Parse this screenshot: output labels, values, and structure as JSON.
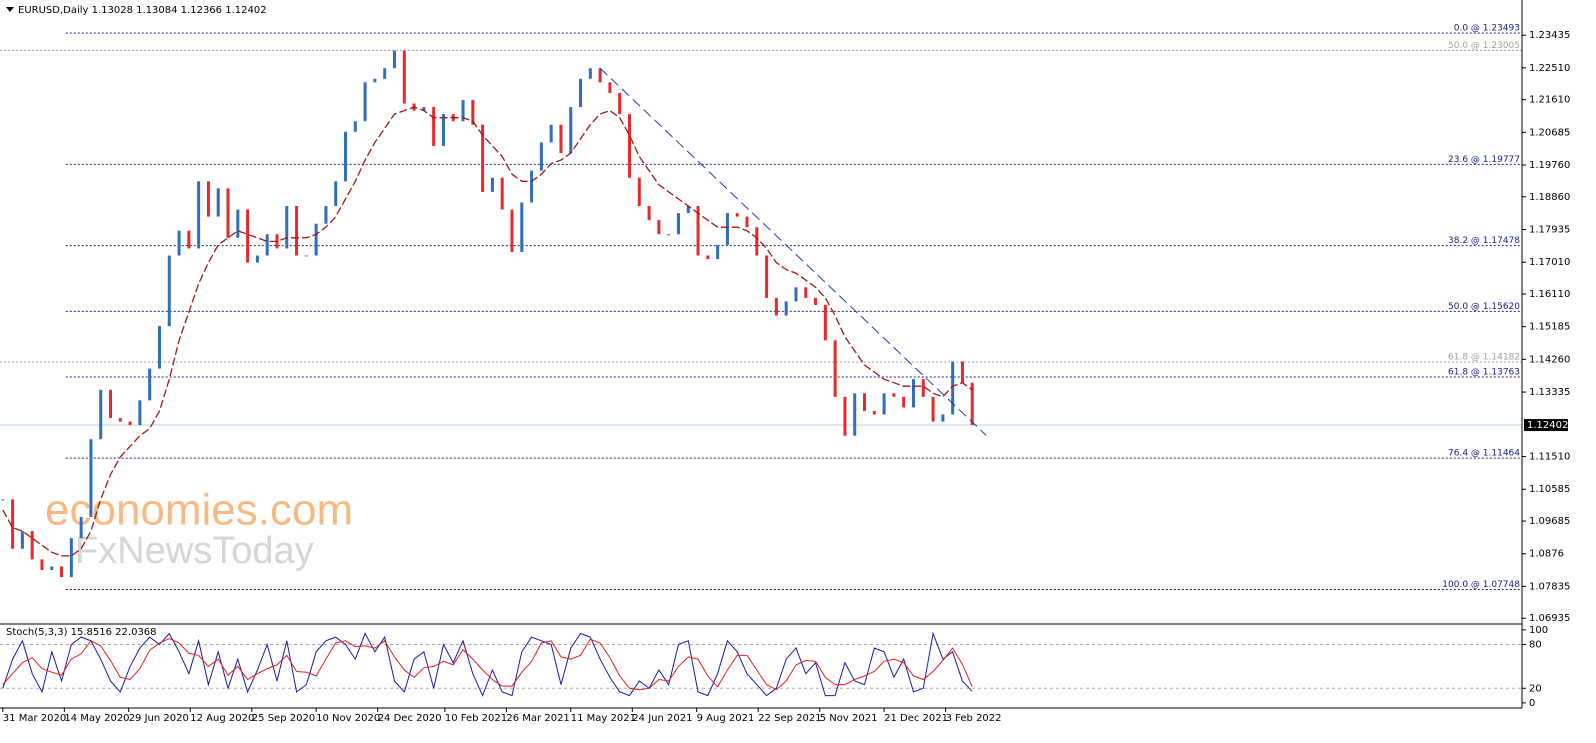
{
  "chart_data": {
    "type": "candlestick",
    "title": "EURUSD,Daily  1.13028 1.13084 1.12366 1.12402",
    "x": [
      "2020-03-31",
      "2020-04-07",
      "2020-04-14",
      "2020-04-21",
      "2020-04-28",
      "2020-05-05",
      "2020-05-12",
      "2020-05-19",
      "2020-05-26",
      "2020-06-02",
      "2020-06-09",
      "2020-06-16",
      "2020-06-23",
      "2020-06-30",
      "2020-07-07",
      "2020-07-14",
      "2020-07-21",
      "2020-07-28",
      "2020-08-04",
      "2020-08-11",
      "2020-08-18",
      "2020-08-25",
      "2020-09-01",
      "2020-09-08",
      "2020-09-15",
      "2020-09-22",
      "2020-09-29",
      "2020-10-06",
      "2020-10-13",
      "2020-10-20",
      "2020-10-27",
      "2020-11-03",
      "2020-11-10",
      "2020-11-17",
      "2020-11-24",
      "2020-12-01",
      "2020-12-08",
      "2020-12-15",
      "2020-12-22",
      "2020-12-29",
      "2021-01-05",
      "2021-01-12",
      "2021-01-19",
      "2021-01-26",
      "2021-02-02",
      "2021-02-09",
      "2021-02-16",
      "2021-02-23",
      "2021-03-02",
      "2021-03-09",
      "2021-03-16",
      "2021-03-23",
      "2021-03-30",
      "2021-04-06",
      "2021-04-13",
      "2021-04-20",
      "2021-04-27",
      "2021-05-04",
      "2021-05-11",
      "2021-05-18",
      "2021-05-25",
      "2021-06-01",
      "2021-06-08",
      "2021-06-15",
      "2021-06-22",
      "2021-06-29",
      "2021-07-06",
      "2021-07-13",
      "2021-07-20",
      "2021-07-27",
      "2021-08-03",
      "2021-08-10",
      "2021-08-17",
      "2021-08-24",
      "2021-08-31",
      "2021-09-07",
      "2021-09-14",
      "2021-09-21",
      "2021-09-28",
      "2021-10-05",
      "2021-10-12",
      "2021-10-19",
      "2021-10-26",
      "2021-11-02",
      "2021-11-09",
      "2021-11-16",
      "2021-11-23",
      "2021-11-30",
      "2021-12-07",
      "2021-12-14",
      "2021-12-21",
      "2021-12-28",
      "2022-01-04",
      "2022-01-11",
      "2022-01-18",
      "2022-01-25",
      "2022-02-01",
      "2022-02-08",
      "2022-02-15",
      "2022-02-22"
    ],
    "xlim": [
      "2020-03-29",
      "2023-03-22"
    ],
    "xticks": [
      {
        "value": "2020-03-31",
        "label": "31 Mar 2020"
      },
      {
        "value": "2020-05-14",
        "label": "14 May 2020"
      },
      {
        "value": "2020-06-29",
        "label": "29 Jun 2020"
      },
      {
        "value": "2020-08-12",
        "label": "12 Aug 2020"
      },
      {
        "value": "2020-09-25",
        "label": "25 Sep 2020"
      },
      {
        "value": "2020-11-10",
        "label": "10 Nov 2020"
      },
      {
        "value": "2020-12-24",
        "label": "24 Dec 2020"
      },
      {
        "value": "2021-02-10",
        "label": "10 Feb 2021"
      },
      {
        "value": "2021-03-26",
        "label": "26 Mar 2021"
      },
      {
        "value": "2021-05-11",
        "label": "11 May 2021"
      },
      {
        "value": "2021-06-24",
        "label": "24 Jun 2021"
      },
      {
        "value": "2021-08-09",
        "label": "9 Aug 2021"
      },
      {
        "value": "2021-09-22",
        "label": "22 Sep 2021"
      },
      {
        "value": "2021-11-05",
        "label": "5 Nov 2021"
      },
      {
        "value": "2021-12-21",
        "label": "21 Dec 2021"
      },
      {
        "value": "2022-02-03",
        "label": "3 Feb 2022"
      }
    ],
    "ylim": [
      1.068,
      1.2443
    ],
    "yticks": [
      1.23435,
      {
        "value": 1.2251,
        "label": "1.22510"
      },
      {
        "value": 1.2161,
        "label": "1.21610"
      },
      1.20685,
      {
        "value": 1.1976,
        "label": "1.19760"
      },
      {
        "value": 1.1886,
        "label": "1.18860"
      },
      1.17935,
      {
        "value": 1.1701,
        "label": "1.17010"
      },
      {
        "value": 1.1611,
        "label": "1.16110"
      },
      1.15185,
      {
        "value": 1.1426,
        "label": "1.14260"
      },
      1.13335,
      {
        "value": 1.1151,
        "label": "1.11510"
      },
      1.10585,
      1.09685,
      1.0876,
      1.07835,
      1.06935
    ],
    "series": [
      {
        "color": "#2f6fb8",
        "down_color": "#e8282b",
        "values": [
          1.103,
          1.089,
          1.094,
          1.086,
          1.083,
          1.084,
          1.081,
          1.092,
          1.098,
          1.12,
          1.134,
          1.126,
          1.125,
          1.124,
          1.131,
          1.14,
          1.152,
          1.172,
          1.179,
          1.174,
          1.193,
          1.183,
          1.191,
          1.177,
          1.185,
          1.17,
          1.172,
          1.178,
          1.174,
          1.186,
          1.172,
          1.172,
          1.181,
          1.186,
          1.193,
          1.207,
          1.21,
          1.221,
          1.222,
          1.225,
          1.23,
          1.215,
          1.213,
          1.214,
          1.203,
          1.212,
          1.21,
          1.216,
          1.209,
          1.19,
          1.194,
          1.185,
          1.173,
          1.187,
          1.196,
          1.204,
          1.209,
          1.201,
          1.214,
          1.222,
          1.225,
          1.221,
          1.218,
          1.212,
          1.194,
          1.186,
          1.182,
          1.178,
          1.178,
          1.184,
          1.186,
          1.172,
          1.171,
          1.175,
          1.184,
          1.183,
          1.18,
          1.172,
          1.16,
          1.155,
          1.159,
          1.163,
          1.16,
          1.158,
          1.148,
          1.132,
          1.121,
          1.133,
          1.128,
          1.127,
          1.133,
          1.132,
          1.129,
          1.137,
          1.132,
          1.125,
          1.127,
          1.142,
          1.136,
          1.12402
        ]
      },
      {
        "color": "#a01818",
        "values": [
          1.1,
          1.095,
          1.094,
          1.092,
          1.09,
          1.088,
          1.087,
          1.087,
          1.089,
          1.094,
          1.103,
          1.11,
          1.115,
          1.118,
          1.121,
          1.123,
          1.128,
          1.137,
          1.148,
          1.156,
          1.164,
          1.17,
          1.175,
          1.177,
          1.179,
          1.178,
          1.177,
          1.176,
          1.176,
          1.177,
          1.177,
          1.177,
          1.178,
          1.18,
          1.183,
          1.188,
          1.193,
          1.199,
          1.204,
          1.208,
          1.212,
          1.213,
          1.214,
          1.213,
          1.211,
          1.211,
          1.211,
          1.211,
          1.21,
          1.206,
          1.203,
          1.2,
          1.195,
          1.193,
          1.193,
          1.195,
          1.198,
          1.199,
          1.201,
          1.205,
          1.209,
          1.212,
          1.213,
          1.211,
          1.206,
          1.2,
          1.196,
          1.192,
          1.19,
          1.188,
          1.186,
          1.184,
          1.182,
          1.18,
          1.18,
          1.18,
          1.179,
          1.177,
          1.174,
          1.17,
          1.168,
          1.167,
          1.165,
          1.163,
          1.16,
          1.155,
          1.149,
          1.145,
          1.141,
          1.139,
          1.137,
          1.136,
          1.135,
          1.135,
          1.135,
          1.133,
          1.132,
          1.135,
          1.136,
          1.134
        ]
      }
    ],
    "current_price": 1.12402,
    "levels": [
      {
        "label": "0.0 @ 1.23493",
        "value": 1.23493,
        "color": "#1a237e",
        "start": "2020-05-15"
      },
      {
        "label": "50.0 @ 1.23005",
        "value": 1.23005,
        "color": "#a0a0a0"
      },
      {
        "label": "23.6 @ 1.19777",
        "value": 1.19777,
        "color": "#1a237e",
        "start": "2020-05-15"
      },
      {
        "label": "38.2 @ 1.17478",
        "value": 1.17478,
        "color": "#1a237e",
        "start": "2020-05-15"
      },
      {
        "label": "50.0 @ 1.15620",
        "value": 1.1562,
        "color": "#1a237e",
        "start": "2020-05-15"
      },
      {
        "label": "61.8 @ 1.14182",
        "value": 1.14182,
        "color": "#a0a0a0"
      },
      {
        "label": "61.8 @ 1.13763",
        "value": 1.13763,
        "color": "#1a237e",
        "start": "2020-05-15"
      },
      {
        "label": "76.4 @ 1.11464",
        "value": 1.11464,
        "color": "#1a237e",
        "start": "2020-05-15"
      },
      {
        "label": "100.0 @ 1.07748",
        "value": 1.07748,
        "color": "#1a237e",
        "start": "2020-05-15"
      }
    ],
    "trendline": {
      "x": [
        "2021-06-01",
        "2022-03-04"
      ],
      "y": [
        1.225,
        1.1211
      ],
      "color": "#1f3fa8"
    },
    "watermark": [
      "economies.com",
      "FxNewsToday"
    ],
    "indicator": {
      "type": "line",
      "title": "Stoch(5,3,3) 15.8516 22.0368",
      "ylim": [
        -7,
        108
      ],
      "yticks": [
        100,
        80,
        20,
        0
      ],
      "levels": [
        80,
        20
      ],
      "series": [
        {
          "color": "#1a1aa0",
          "values": [
            20,
            60,
            85,
            40,
            15,
            70,
            30,
            80,
            90,
            85,
            60,
            30,
            15,
            50,
            75,
            90,
            80,
            95,
            70,
            40,
            85,
            25,
            70,
            20,
            60,
            15,
            45,
            80,
            30,
            85,
            15,
            25,
            70,
            85,
            90,
            80,
            60,
            95,
            70,
            90,
            30,
            15,
            60,
            70,
            20,
            80,
            55,
            85,
            40,
            10,
            45,
            15,
            10,
            70,
            90,
            85,
            80,
            25,
            75,
            95,
            90,
            60,
            35,
            15,
            10,
            30,
            20,
            45,
            25,
            80,
            85,
            15,
            10,
            40,
            85,
            70,
            40,
            25,
            10,
            20,
            60,
            75,
            40,
            55,
            10,
            10,
            55,
            30,
            25,
            75,
            70,
            35,
            60,
            15,
            20,
            95,
            60,
            70,
            30,
            15.8516
          ]
        },
        {
          "color": "#e02020",
          "values": [
            25,
            40,
            55,
            62,
            47,
            42,
            38,
            60,
            67,
            85,
            78,
            58,
            35,
            32,
            47,
            72,
            82,
            88,
            82,
            68,
            65,
            50,
            60,
            38,
            50,
            32,
            40,
            47,
            52,
            65,
            43,
            42,
            37,
            60,
            82,
            85,
            77,
            78,
            75,
            85,
            63,
            45,
            35,
            48,
            50,
            57,
            52,
            73,
            60,
            45,
            32,
            23,
            23,
            42,
            57,
            82,
            85,
            63,
            60,
            65,
            87,
            82,
            62,
            37,
            20,
            18,
            20,
            32,
            30,
            50,
            63,
            60,
            37,
            22,
            45,
            65,
            65,
            45,
            25,
            18,
            30,
            52,
            58,
            57,
            35,
            25,
            25,
            32,
            37,
            43,
            57,
            60,
            55,
            37,
            32,
            43,
            58,
            75,
            53,
            22.0368
          ]
        }
      ]
    }
  }
}
